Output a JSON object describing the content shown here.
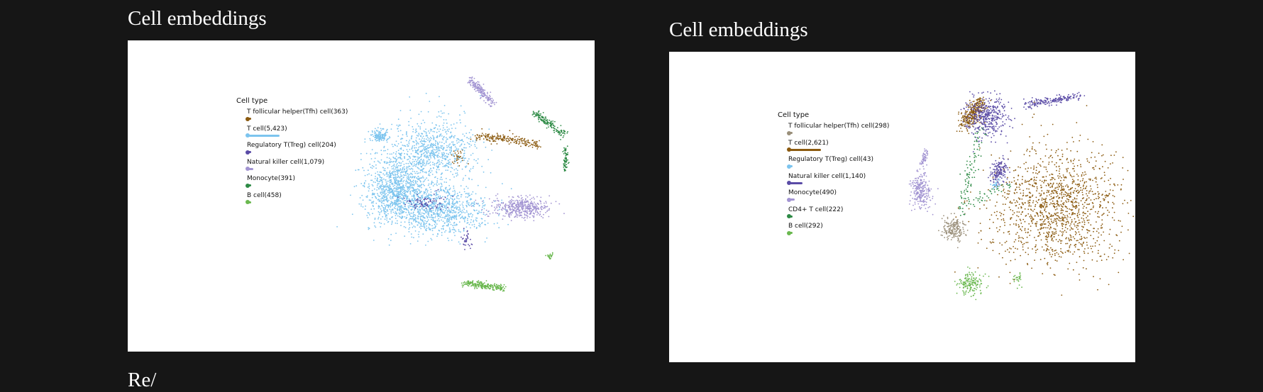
{
  "panels": [
    {
      "title": "Cell embeddings",
      "chart_data": {
        "type": "scatter",
        "legend_title": "Cell type",
        "legend_placement": "left",
        "grid": false,
        "series": [
          {
            "name": "T follicular helper(Tfh) cell(363)",
            "count": 363,
            "color": "#8b5a0f"
          },
          {
            "name": "T cell(5,423)",
            "count": 5423,
            "color": "#7cc4ee"
          },
          {
            "name": "Regulatory T(Treg) cell(204)",
            "count": 204,
            "color": "#5a4ba6"
          },
          {
            "name": "Natural killer cell(1,079)",
            "count": 1079,
            "color": "#a294d2"
          },
          {
            "name": "Monocyte(391)",
            "count": 391,
            "color": "#2d8a45"
          },
          {
            "name": "B cell(458)",
            "count": 458,
            "color": "#6ab84f"
          }
        ]
      }
    },
    {
      "title": "Cell embeddings",
      "chart_data": {
        "type": "scatter",
        "legend_title": "Cell type",
        "legend_placement": "left",
        "grid": false,
        "series": [
          {
            "name": "T follicular helper(Tfh) cell(298)",
            "count": 298,
            "color": "#9a8f7a"
          },
          {
            "name": "T cell(2,621)",
            "count": 2621,
            "color": "#8b5a0f"
          },
          {
            "name": "Regulatory T(Treg) cell(43)",
            "count": 43,
            "color": "#7cc4ee"
          },
          {
            "name": "Natural killer cell(1,140)",
            "count": 1140,
            "color": "#5a4ba6"
          },
          {
            "name": "Monocyte(490)",
            "count": 490,
            "color": "#a294d2"
          },
          {
            "name": "CD4+ T cell(222)",
            "count": 222,
            "color": "#2d8a45"
          },
          {
            "name": "B cell(292)",
            "count": 292,
            "color": "#6ab84f"
          }
        ]
      }
    }
  ],
  "next_heading": "Re/"
}
